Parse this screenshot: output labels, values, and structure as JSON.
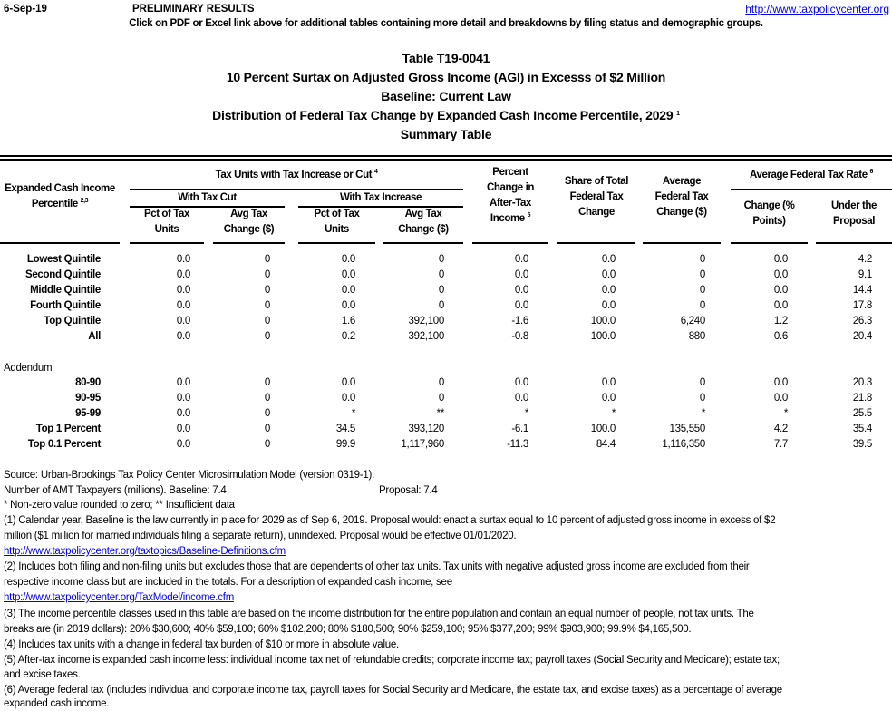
{
  "top": {
    "date": "6-Sep-19",
    "status": "PRELIMINARY RESULTS",
    "url": "http://www.taxpolicycenter.org",
    "note": "Click on PDF or Excel link above for additional tables containing more detail and breakdowns by filing status and demographic groups."
  },
  "titles": {
    "table_id": "Table T19-0041",
    "line1": "10 Percent Surtax on Adjusted Gross Income (AGI) in Excesss of $2 Million",
    "line2": "Baseline: Current Law",
    "line3": "Distribution of Federal Tax Change by Expanded Cash Income Percentile, 2029",
    "line3_sup": "1",
    "line4": "Summary Table"
  },
  "headers": {
    "percentile_l1": "Expanded Cash Income",
    "percentile_l2": "Percentile",
    "percentile_sup": "2,3",
    "tax_units": "Tax Units with Tax Increase or Cut",
    "tax_units_sup": "4",
    "with_cut": "With Tax Cut",
    "with_increase": "With Tax Increase",
    "pct_units_l1": "Pct of Tax",
    "pct_units_l2": "Units",
    "avg_change_l1": "Avg Tax",
    "avg_change_l2": "Change ($)",
    "pct_change_l1": "Percent",
    "pct_change_l2": "Change in",
    "pct_change_l3": "After-Tax",
    "pct_change_l4": "Income",
    "pct_change_sup": "5",
    "share_l1": "Share of Total",
    "share_l2": "Federal Tax",
    "share_l3": "Change",
    "avg_fed_l1": "Average",
    "avg_fed_l2": "Federal Tax",
    "avg_fed_l3": "Change ($)",
    "rate": "Average Federal Tax Rate",
    "rate_sup": "6",
    "rate_change_l1": "Change (%",
    "rate_change_l2": "Points)",
    "rate_under_l1": "Under the",
    "rate_under_l2": "Proposal"
  },
  "rows": [
    [
      "Lowest Quintile",
      "0.0",
      "0",
      "0.0",
      "0",
      "0.0",
      "0.0",
      "0",
      "0.0",
      "4.2"
    ],
    [
      "Second Quintile",
      "0.0",
      "0",
      "0.0",
      "0",
      "0.0",
      "0.0",
      "0",
      "0.0",
      "9.1"
    ],
    [
      "Middle Quintile",
      "0.0",
      "0",
      "0.0",
      "0",
      "0.0",
      "0.0",
      "0",
      "0.0",
      "14.4"
    ],
    [
      "Fourth Quintile",
      "0.0",
      "0",
      "0.0",
      "0",
      "0.0",
      "0.0",
      "0",
      "0.0",
      "17.8"
    ],
    [
      "Top Quintile",
      "0.0",
      "0",
      "1.6",
      "392,100",
      "-1.6",
      "100.0",
      "6,240",
      "1.2",
      "26.3"
    ],
    [
      "All",
      "0.0",
      "0",
      "0.2",
      "392,100",
      "-0.8",
      "100.0",
      "880",
      "0.6",
      "20.4"
    ]
  ],
  "addendum_label": "Addendum",
  "addendum_rows": [
    [
      "80-90",
      "0.0",
      "0",
      "0.0",
      "0",
      "0.0",
      "0.0",
      "0",
      "0.0",
      "20.3"
    ],
    [
      "90-95",
      "0.0",
      "0",
      "0.0",
      "0",
      "0.0",
      "0.0",
      "0",
      "0.0",
      "21.8"
    ],
    [
      "95-99",
      "0.0",
      "0",
      "*",
      "**",
      "*",
      "*",
      "*",
      "*",
      "25.5"
    ],
    [
      "Top 1 Percent",
      "0.0",
      "0",
      "34.5",
      "393,120",
      "-6.1",
      "100.0",
      "135,550",
      "4.2",
      "35.4"
    ],
    [
      "Top 0.1 Percent",
      "0.0",
      "0",
      "99.9",
      "1,117,960",
      "-11.3",
      "84.4",
      "1,116,350",
      "7.7",
      "39.5"
    ]
  ],
  "footnotes": {
    "source": "Source: Urban-Brookings Tax Policy Center Microsimulation Model (version 0319-1).",
    "amt": "Number of AMT Taxpayers (millions).  Baseline: 7.4",
    "amt_proposal": "Proposal: 7.4",
    "star": "* Non-zero value rounded to zero; ** Insufficient data",
    "n1a": "(1) Calendar year. Baseline is the law currently in place for 2029 as of Sep 6, 2019. Proposal would: enact a surtax equal to 10 percent of adjusted gross income in excess of $2",
    "n1b": "million ($1 million for married individuals filing a separate return), unindexed. Proposal would be effective 01/01/2020.",
    "n1link": "http://www.taxpolicycenter.org/taxtopics/Baseline-Definitions.cfm",
    "n2a": "(2) Includes both filing and non-filing units but excludes those that are dependents of other tax units. Tax units with negative adjusted gross income are excluded from their",
    "n2b": "respective income class but are included in the totals. For a description of expanded cash income, see",
    "n2link": "http://www.taxpolicycenter.org/TaxModel/income.cfm",
    "n3a": "(3) The income percentile classes used in this table are based on the income distribution for the entire population and contain an equal number of people, not tax units. The",
    "n3b": "breaks are (in 2019 dollars): 20% $30,600; 40% $59,100; 60% $102,200; 80% $180,500; 90% $259,100; 95% $377,200; 99% $903,900; 99.9% $4,165,500.",
    "n4": "(4) Includes tax units with a change in federal tax burden of $10 or more in absolute value.",
    "n5a": "(5) After-tax income is expanded cash income less: individual income tax net of refundable credits; corporate income tax; payroll taxes (Social Security and Medicare); estate tax;",
    "n5b": "and excise taxes.",
    "n6a": "(6) Average federal tax (includes individual and corporate income tax, payroll taxes for Social Security and Medicare, the estate tax, and excise taxes) as a percentage of average",
    "n6b": "expanded cash income."
  }
}
